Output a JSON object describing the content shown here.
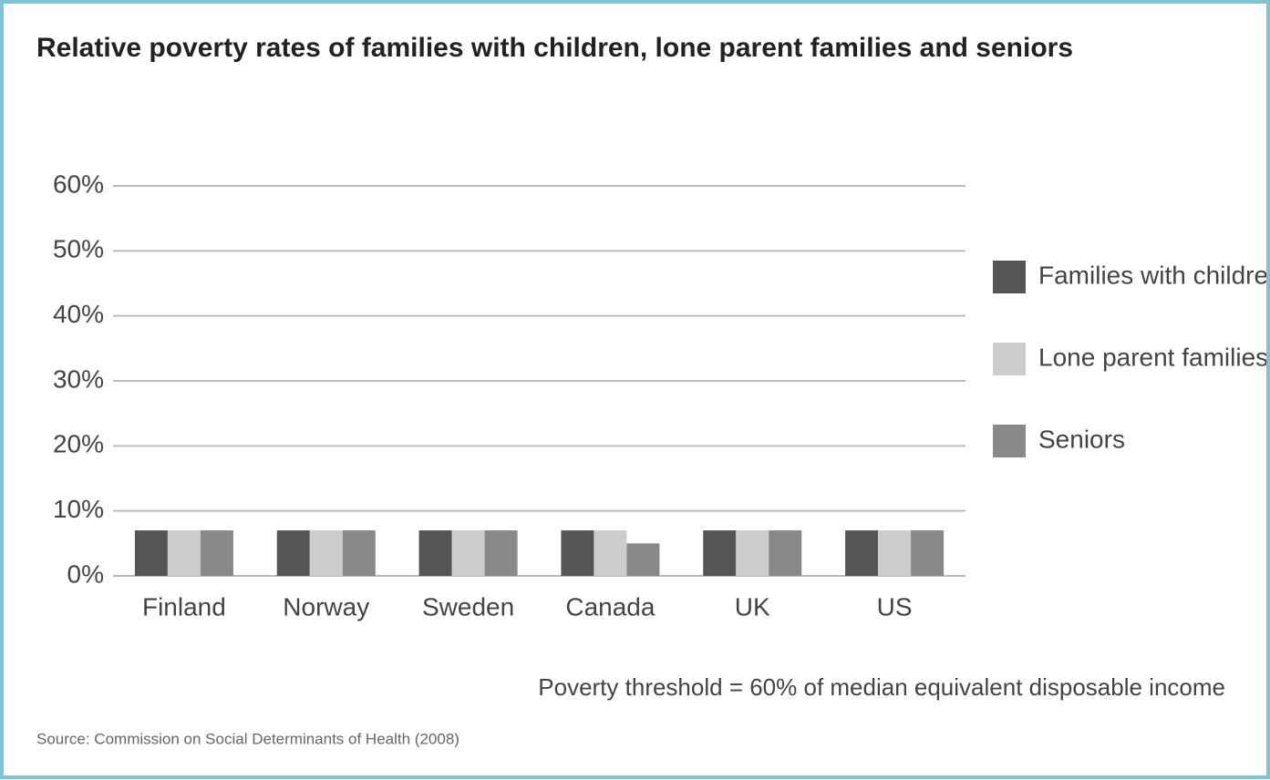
{
  "chart_data": {
    "type": "bar",
    "title": "Relative poverty rates of families with children, lone parent families and seniors",
    "categories": [
      "Finland",
      "Norway",
      "Sweden",
      "Canada",
      "UK",
      "US"
    ],
    "series": [
      {
        "name": "Families with children",
        "color": "#555555",
        "values": [
          7,
          7,
          7,
          7,
          7,
          7
        ]
      },
      {
        "name": "Lone parent families",
        "color": "#cccccc",
        "values": [
          7,
          7,
          7,
          7,
          7,
          7
        ]
      },
      {
        "name": "Seniors",
        "color": "#888888",
        "values": [
          7,
          7,
          7,
          5,
          7,
          7
        ]
      }
    ],
    "ylim": [
      0,
      60
    ],
    "yticks": [
      {
        "value": 0,
        "label": "0%"
      },
      {
        "value": 10,
        "label": "10%"
      },
      {
        "value": 20,
        "label": "20%"
      },
      {
        "value": 30,
        "label": "30%"
      },
      {
        "value": 40,
        "label": "40%"
      },
      {
        "value": 50,
        "label": "50%"
      },
      {
        "value": 60,
        "label": "60%"
      }
    ],
    "grid": true,
    "legend": "right",
    "note": "Poverty threshold = 60% of median equivalent disposable income",
    "source": "Source: Commission on Social Determinants of Health (2008)"
  }
}
